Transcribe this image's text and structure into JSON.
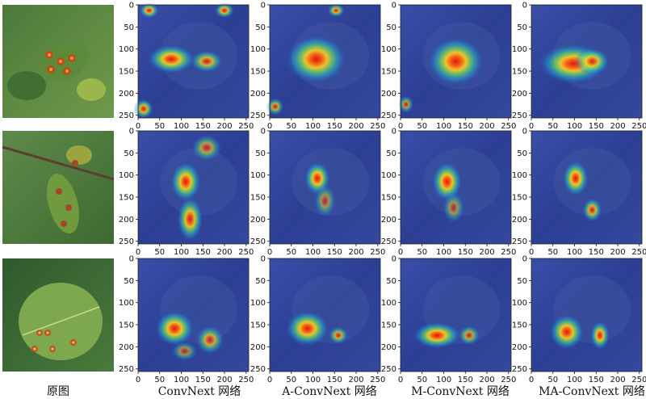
{
  "figure": {
    "axis_ticks": [
      "0",
      "50",
      "100",
      "150",
      "200",
      "250"
    ],
    "columns": [
      {
        "caption": "原图"
      },
      {
        "caption": "ConvNext 网络"
      },
      {
        "caption": "A-ConvNext 网络"
      },
      {
        "caption": "M-ConvNext 网络"
      },
      {
        "caption": "MA-ConvNext 网络"
      }
    ],
    "rows": [
      {
        "leaf": "apple leaf with multiple rust spots",
        "heatmaps": [
          {
            "hotspots": [
              [
                0.3,
                0.48,
                0.22,
                0.13,
                1.0
              ],
              [
                0.62,
                0.5,
                0.15,
                0.1,
                0.85
              ],
              [
                0.1,
                0.05,
                0.09,
                0.07,
                0.9
              ],
              [
                0.78,
                0.05,
                0.09,
                0.07,
                0.9
              ],
              [
                0.05,
                0.92,
                0.09,
                0.09,
                0.9
              ]
            ]
          },
          {
            "hotspots": [
              [
                0.42,
                0.48,
                0.28,
                0.22,
                1.0
              ],
              [
                0.6,
                0.05,
                0.08,
                0.06,
                0.9
              ],
              [
                0.05,
                0.9,
                0.08,
                0.08,
                0.8
              ]
            ]
          },
          {
            "hotspots": [
              [
                0.5,
                0.5,
                0.26,
                0.22,
                1.0
              ],
              [
                0.05,
                0.88,
                0.07,
                0.08,
                0.7
              ]
            ]
          },
          {
            "hotspots": [
              [
                0.38,
                0.52,
                0.32,
                0.18,
                1.0
              ],
              [
                0.55,
                0.5,
                0.16,
                0.12,
                0.9
              ]
            ]
          }
        ]
      },
      {
        "leaf": "apple branch with spotted leaves",
        "heatmaps": [
          {
            "hotspots": [
              [
                0.43,
                0.45,
                0.14,
                0.18,
                1.0
              ],
              [
                0.47,
                0.78,
                0.12,
                0.2,
                0.95
              ],
              [
                0.62,
                0.15,
                0.14,
                0.12,
                0.7
              ]
            ]
          },
          {
            "hotspots": [
              [
                0.43,
                0.42,
                0.12,
                0.15,
                1.0
              ],
              [
                0.5,
                0.62,
                0.1,
                0.15,
                0.6
              ]
            ]
          },
          {
            "hotspots": [
              [
                0.42,
                0.45,
                0.14,
                0.18,
                1.0
              ],
              [
                0.48,
                0.68,
                0.1,
                0.14,
                0.6
              ]
            ]
          },
          {
            "hotspots": [
              [
                0.4,
                0.42,
                0.12,
                0.16,
                1.0
              ],
              [
                0.55,
                0.7,
                0.09,
                0.11,
                0.85
              ]
            ]
          }
        ]
      },
      {
        "leaf": "single apple leaf with brown spots",
        "heatmaps": [
          {
            "hotspots": [
              [
                0.33,
                0.62,
                0.18,
                0.16,
                1.0
              ],
              [
                0.65,
                0.72,
                0.13,
                0.13,
                0.8
              ],
              [
                0.42,
                0.82,
                0.12,
                0.09,
                0.6
              ]
            ]
          },
          {
            "hotspots": [
              [
                0.34,
                0.62,
                0.2,
                0.16,
                1.0
              ],
              [
                0.62,
                0.68,
                0.09,
                0.08,
                0.8
              ]
            ]
          },
          {
            "hotspots": [
              [
                0.33,
                0.68,
                0.22,
                0.12,
                1.0
              ],
              [
                0.62,
                0.68,
                0.1,
                0.09,
                0.75
              ]
            ]
          },
          {
            "hotspots": [
              [
                0.32,
                0.65,
                0.16,
                0.16,
                1.0
              ],
              [
                0.62,
                0.68,
                0.09,
                0.13,
                0.95
              ]
            ]
          }
        ]
      }
    ]
  }
}
